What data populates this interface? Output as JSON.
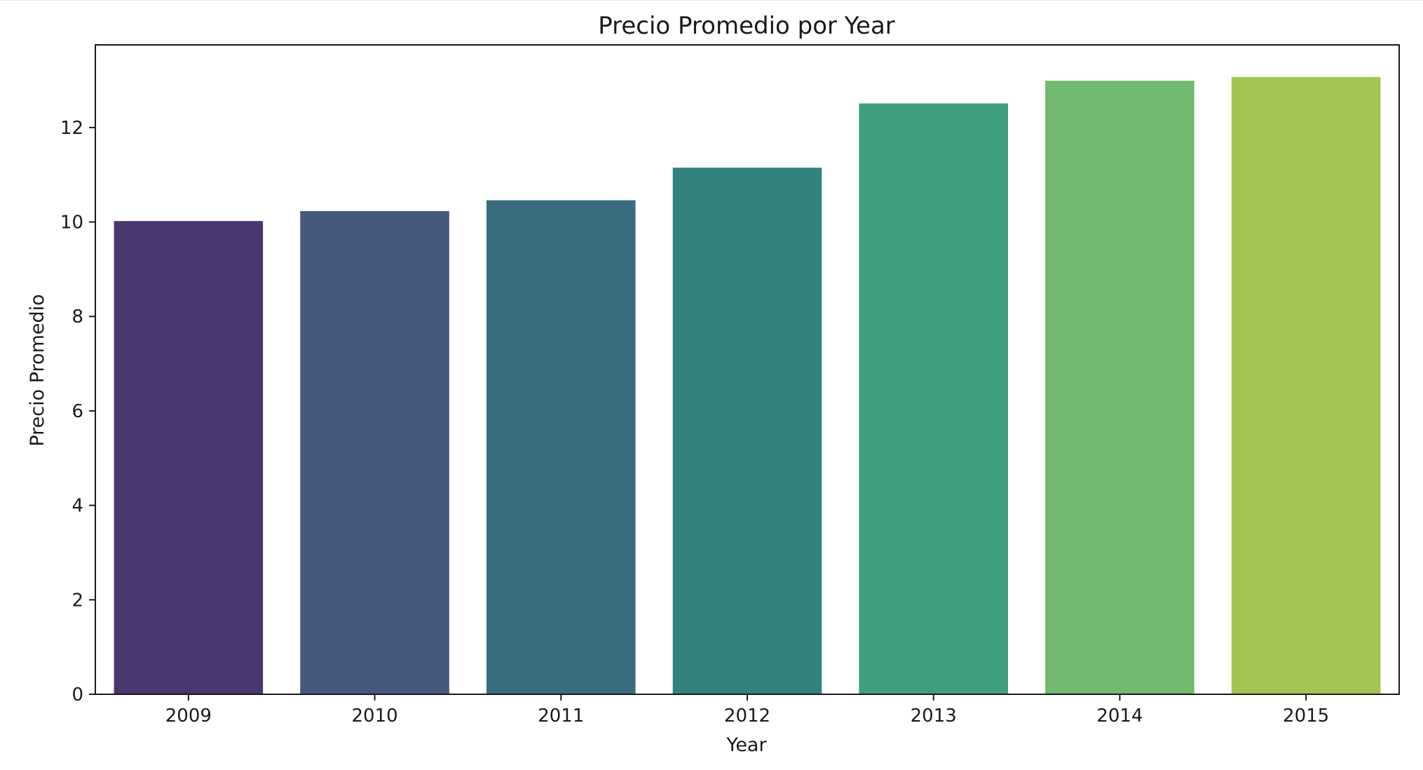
{
  "chart_data": {
    "type": "bar",
    "title": "Precio Promedio por Year",
    "xlabel": "Year",
    "ylabel": "Precio Promedio",
    "categories": [
      "2009",
      "2010",
      "2011",
      "2012",
      "2013",
      "2014",
      "2015"
    ],
    "values": [
      10.02,
      10.23,
      10.46,
      11.15,
      12.51,
      12.99,
      13.07
    ],
    "colors": [
      "#4a366e",
      "#46587e",
      "#3a6c80",
      "#32827e",
      "#3f9e7d",
      "#71b96f",
      "#a2c551"
    ],
    "ylim": [
      0,
      13.75
    ],
    "yticks": [
      "0",
      "2",
      "4",
      "6",
      "8",
      "10",
      "12"
    ],
    "grid": false,
    "legend": "none"
  }
}
